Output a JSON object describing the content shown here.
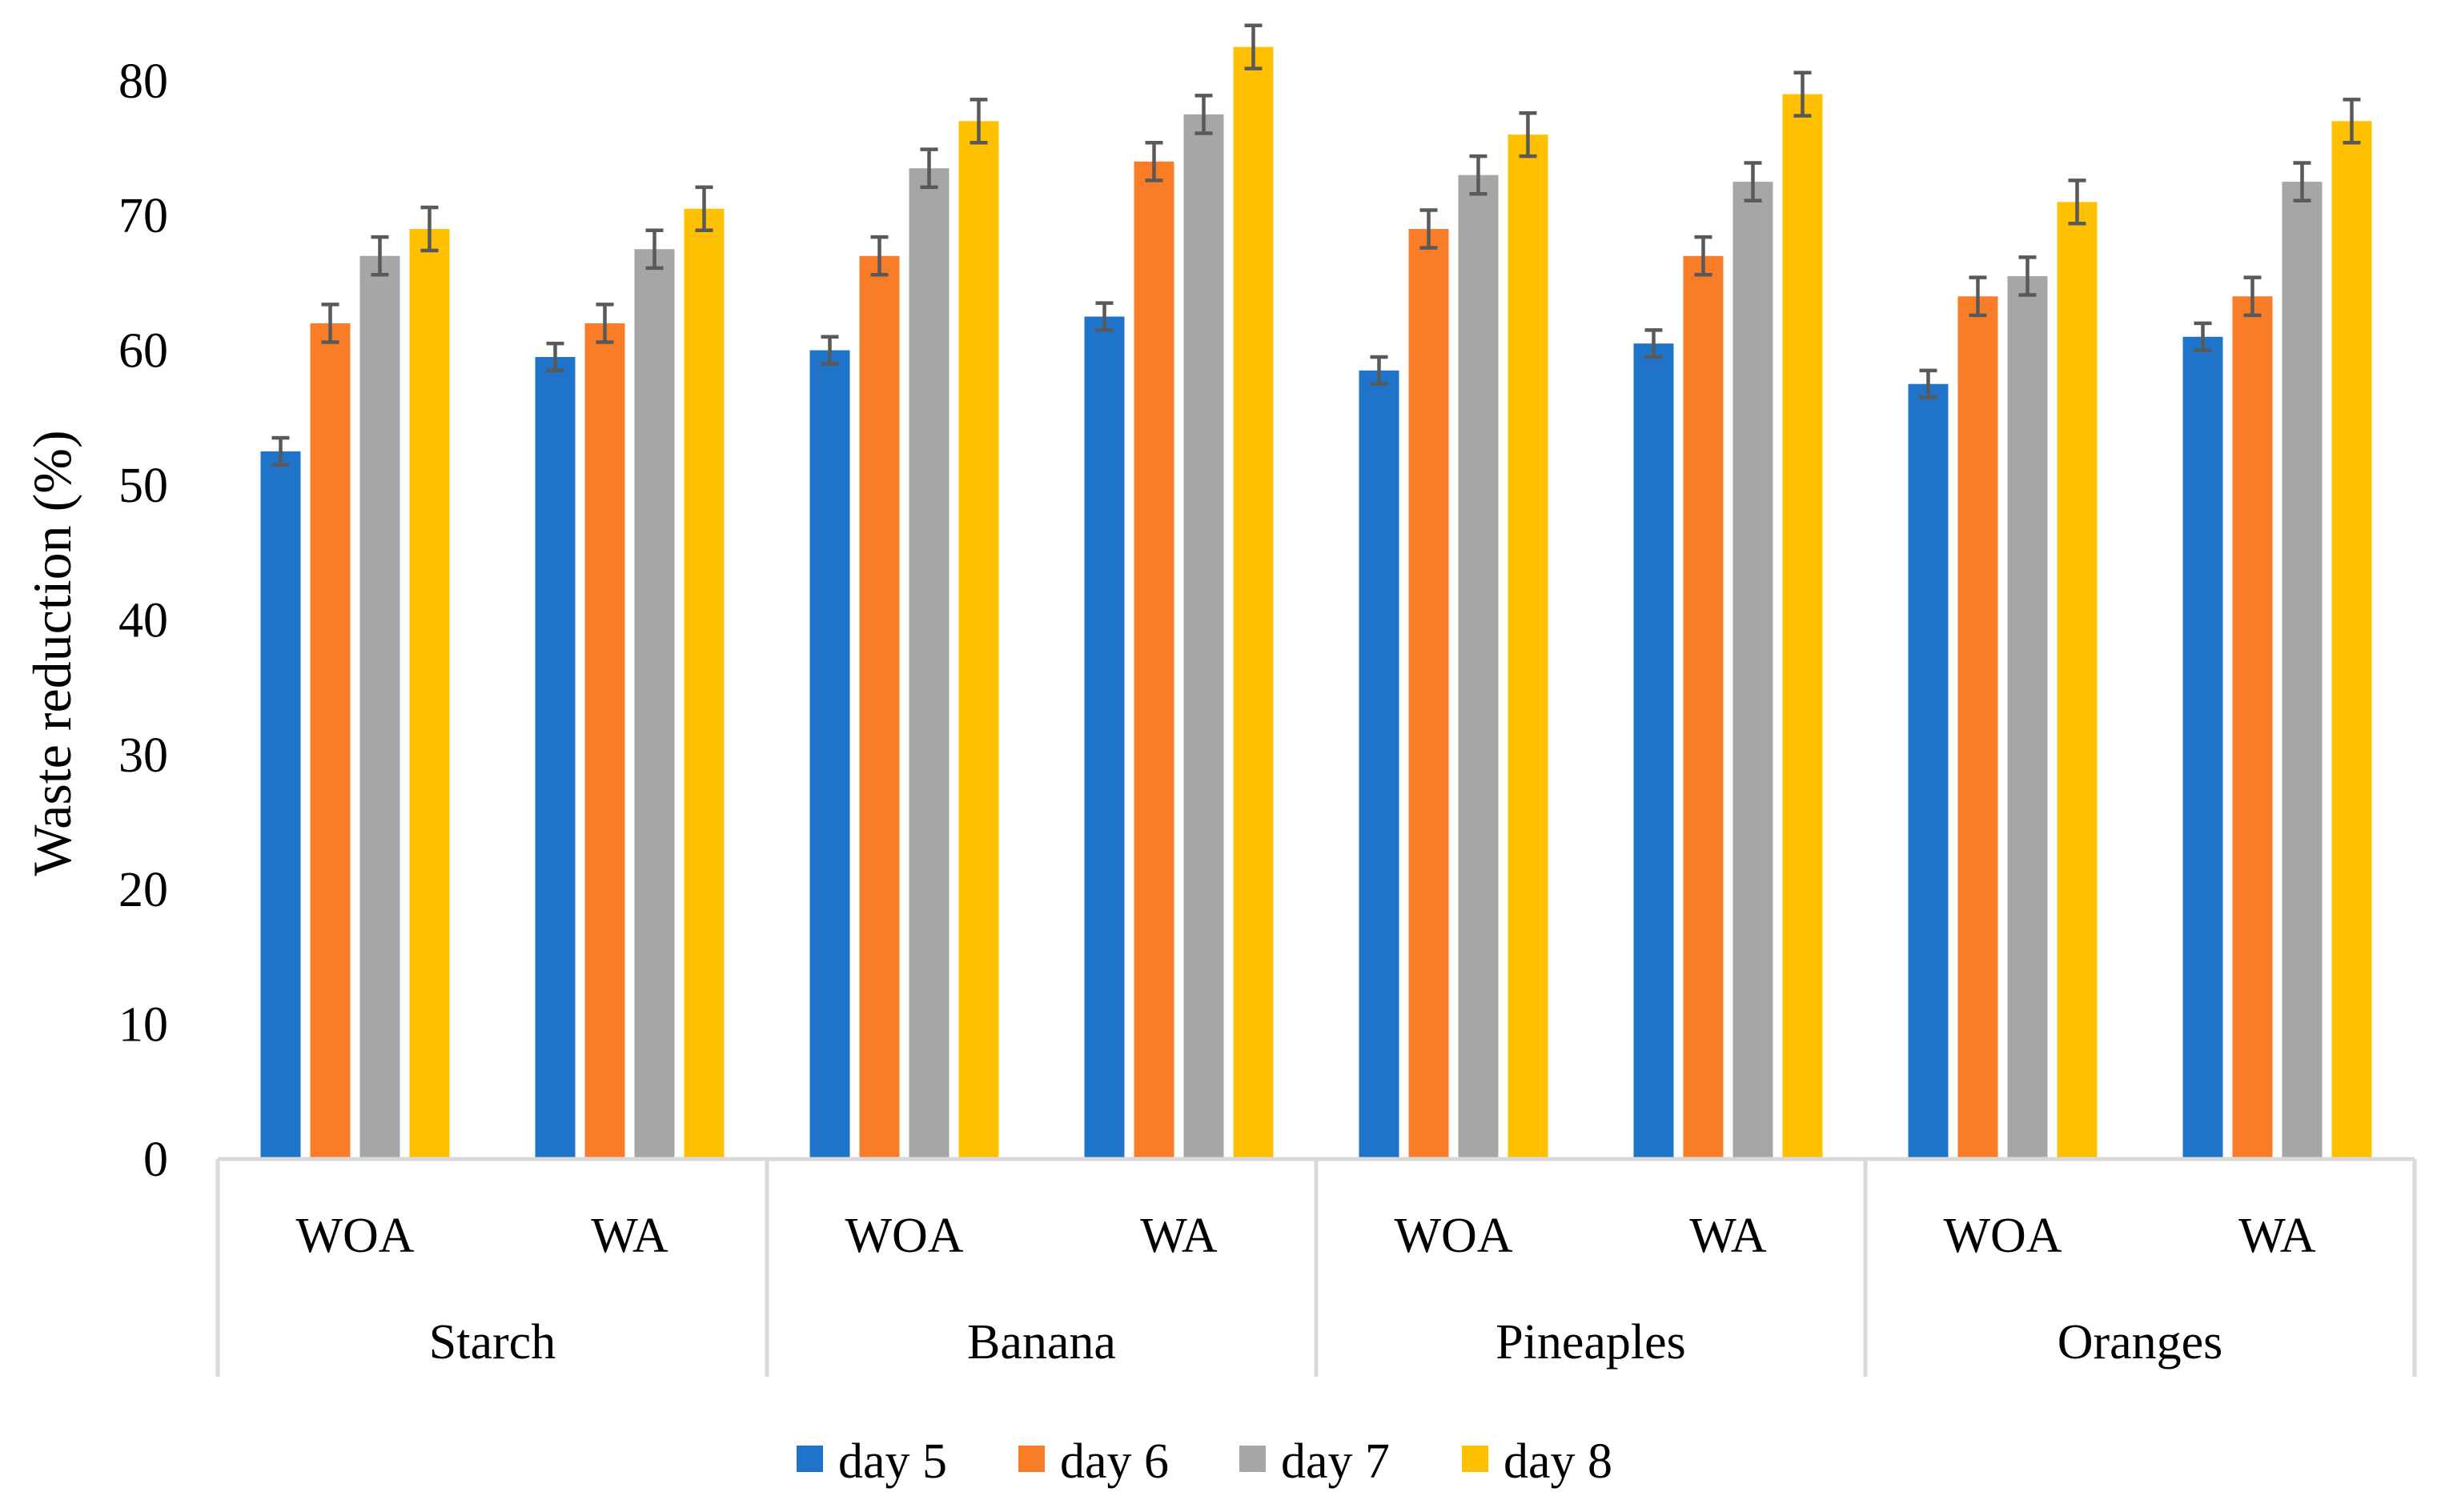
{
  "chart_data": {
    "type": "bar",
    "title": "",
    "xlabel": "",
    "ylabel": "Waste reduction (%)",
    "ylim": [
      0,
      80
    ],
    "yticks": [
      0,
      10,
      20,
      30,
      40,
      50,
      60,
      70,
      80
    ],
    "grid": false,
    "legend_position": "bottom",
    "groups": [
      {
        "label": "Starch",
        "subcategories": [
          "WOA",
          "WA"
        ]
      },
      {
        "label": "Banana",
        "subcategories": [
          "WOA",
          "WA"
        ]
      },
      {
        "label": "Pineaples",
        "subcategories": [
          "WOA",
          "WA"
        ]
      },
      {
        "label": "Oranges",
        "subcategories": [
          "WOA",
          "WA"
        ]
      }
    ],
    "categories": [
      "Starch WOA",
      "Starch WA",
      "Banana WOA",
      "Banana WA",
      "Pineaples WOA",
      "Pineaples WA",
      "Oranges WOA",
      "Oranges WA"
    ],
    "series": [
      {
        "name": "day 5",
        "color": "#1F74C9",
        "values": [
          52.5,
          59.5,
          60,
          62.5,
          58.5,
          60.5,
          57.5,
          61
        ],
        "errors": [
          1,
          1,
          1,
          1,
          1,
          1,
          1,
          1
        ]
      },
      {
        "name": "day 6",
        "color": "#F97D26",
        "values": [
          62,
          62,
          67,
          74,
          69,
          67,
          64,
          64
        ],
        "errors": [
          1.4,
          1.4,
          1.4,
          1.4,
          1.4,
          1.4,
          1.4,
          1.4
        ]
      },
      {
        "name": "day 7",
        "color": "#A6A6A6",
        "values": [
          67,
          67.5,
          73.5,
          77.5,
          73,
          72.5,
          65.5,
          72.5
        ],
        "errors": [
          1.4,
          1.4,
          1.4,
          1.4,
          1.4,
          1.4,
          1.4,
          1.4
        ]
      },
      {
        "name": "day 8",
        "color": "#FFC000",
        "values": [
          69,
          70.5,
          77,
          82.5,
          76,
          79,
          71,
          77
        ],
        "errors": [
          1.6,
          1.6,
          1.6,
          1.6,
          1.6,
          1.6,
          1.6,
          1.6
        ]
      }
    ]
  }
}
